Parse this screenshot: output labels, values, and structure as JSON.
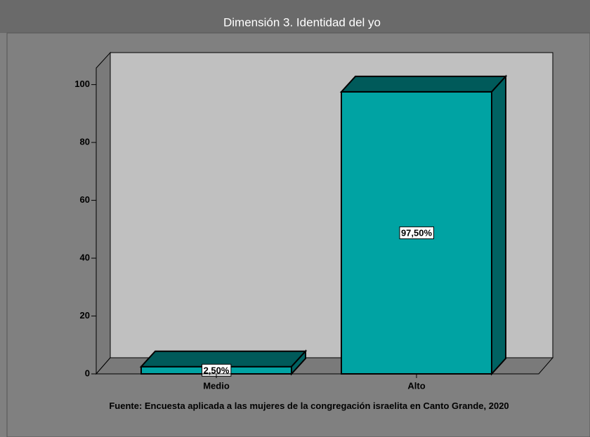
{
  "chart_data": {
    "type": "bar3d",
    "title": "Dimensión 3. Identidad del yo",
    "categories": [
      "Medio",
      "Alto"
    ],
    "values": [
      2.5,
      97.5
    ],
    "value_labels": [
      "2,50%",
      "97,50%"
    ],
    "color": "#00a3a3",
    "ylim": [
      0,
      105
    ],
    "yticks": [
      0,
      20,
      40,
      60,
      80,
      100
    ],
    "source": "Fuente: Encuesta aplicada a las mujeres de la congregación israelita en Canto Grande, 2020"
  }
}
